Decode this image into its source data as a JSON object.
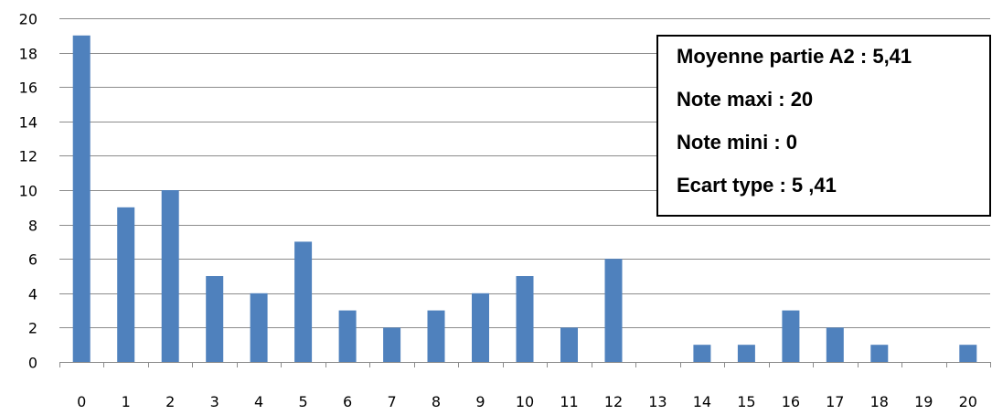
{
  "chart_data": {
    "type": "bar",
    "categories": [
      "0",
      "1",
      "2",
      "3",
      "4",
      "5",
      "6",
      "7",
      "8",
      "9",
      "10",
      "11",
      "12",
      "13",
      "14",
      "15",
      "16",
      "17",
      "18",
      "19",
      "20"
    ],
    "values": [
      19,
      9,
      10,
      5,
      4,
      7,
      3,
      2,
      3,
      4,
      5,
      2,
      6,
      0,
      1,
      1,
      3,
      2,
      1,
      0,
      1
    ],
    "ylim": [
      0,
      20
    ],
    "yticks": [
      "0",
      "2",
      "4",
      "6",
      "8",
      "10",
      "12",
      "14",
      "16",
      "18",
      "20"
    ],
    "grid": true,
    "bar_color": "#4f81bd",
    "legend": "none",
    "title": "",
    "xlabel": "",
    "ylabel": ""
  },
  "stats_box": {
    "lines": [
      "Moyenne partie A2 : 5,41",
      "Note maxi : 20",
      "Note mini : 0",
      "Ecart type : 5 ,41"
    ]
  }
}
